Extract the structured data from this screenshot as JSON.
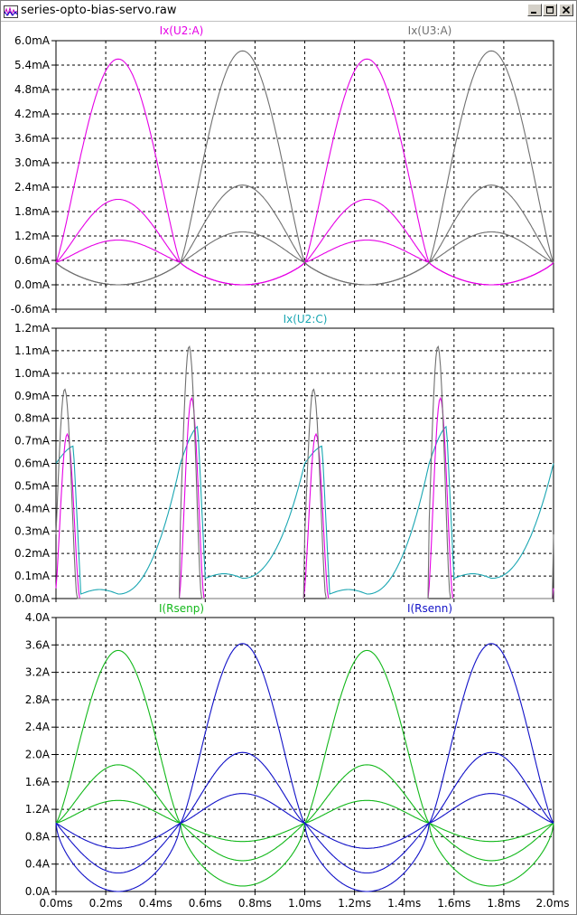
{
  "window": {
    "title": "series-opto-bias-servo.raw",
    "buttons": [
      "minimize",
      "maximize",
      "close"
    ]
  },
  "icons": {
    "app": "waveform-icon",
    "minimize": "minimize-icon",
    "maximize": "maximize-icon",
    "close": "close-icon"
  },
  "colors": {
    "background": "#ffffff",
    "grid": "#000000",
    "magenta": "#e600e6",
    "gray": "#707070",
    "cyan": "#1aa6b2",
    "green": "#12b81a",
    "blue": "#1212c8"
  },
  "x_axis": {
    "unit": "ms",
    "range": [
      0,
      2.0
    ],
    "ticks": [
      "0.0ms",
      "0.2ms",
      "0.4ms",
      "0.6ms",
      "0.8ms",
      "1.0ms",
      "1.2ms",
      "1.4ms",
      "1.6ms",
      "1.8ms",
      "2.0ms"
    ]
  },
  "chart_data": [
    {
      "type": "line",
      "grid": true,
      "legend": [
        {
          "label": "Ix(U2:A)",
          "color": "#e600e6",
          "position": "left"
        },
        {
          "label": "Ix(U3:A)",
          "color": "#707070",
          "position": "right"
        }
      ],
      "ylim": [
        -0.6,
        6.0
      ],
      "yticks": [
        "6.0mA",
        "5.4mA",
        "4.8mA",
        "4.2mA",
        "3.6mA",
        "3.0mA",
        "2.4mA",
        "1.8mA",
        "1.2mA",
        "0.6mA",
        "0.0mA",
        "-0.6mA"
      ],
      "series": [
        {
          "name": "Ix(U2:A)",
          "color": "#e600e6",
          "model": "lobe",
          "phase": 0,
          "peaks": [
            5.55,
            2.1,
            1.1
          ],
          "base": 0.55
        },
        {
          "name": "Ix(U3:A)",
          "color": "#707070",
          "model": "lobe",
          "phase": 0.5,
          "peaks": [
            5.75,
            2.45,
            1.3
          ],
          "base": 0.55
        }
      ]
    },
    {
      "type": "line",
      "grid": true,
      "legend": [
        {
          "label": "Ix(U2:C)",
          "color": "#1aa6b2",
          "position": "center"
        }
      ],
      "ylim": [
        0,
        1.2
      ],
      "yticks": [
        "1.2mA",
        "1.1mA",
        "1.0mA",
        "0.9mA",
        "0.8mA",
        "0.7mA",
        "0.6mA",
        "0.5mA",
        "0.4mA",
        "0.3mA",
        "0.2mA",
        "0.1mA",
        "0.0mA"
      ],
      "series": [
        {
          "name": "Ix(U2:C)",
          "color": "#1aa6b2",
          "model": "pulse",
          "peaks": [
            0.68,
            0.77
          ],
          "floor": [
            0.02,
            0.09
          ]
        },
        {
          "name": "",
          "color": "#e600e6",
          "model": "spike",
          "peaks": [
            0.73,
            0.89
          ]
        },
        {
          "name": "",
          "color": "#707070",
          "model": "spike",
          "peaks": [
            0.93,
            1.12
          ]
        }
      ]
    },
    {
      "type": "line",
      "grid": true,
      "legend": [
        {
          "label": "I(Rsenp)",
          "color": "#12b81a",
          "position": "left"
        },
        {
          "label": "I(Rsenn)",
          "color": "#1212c8",
          "position": "right"
        }
      ],
      "ylim": [
        0,
        4.0
      ],
      "yticks": [
        "4.0A",
        "3.6A",
        "3.2A",
        "2.8A",
        "2.4A",
        "2.0A",
        "1.6A",
        "1.2A",
        "0.8A",
        "0.4A",
        "0.0A"
      ],
      "series": [
        {
          "name": "I(Rsenp)",
          "color": "#12b81a",
          "model": "bidir",
          "phase": 0,
          "hi": [
            3.52,
            1.85,
            1.33
          ],
          "lo": [
            0.08,
            0.45,
            0.73
          ],
          "base": 1.0
        },
        {
          "name": "I(Rsenn)",
          "color": "#1212c8",
          "model": "bidir",
          "phase": 0.5,
          "hi": [
            3.62,
            2.03,
            1.43
          ],
          "lo": [
            0.0,
            0.27,
            0.63
          ],
          "base": 1.0
        }
      ]
    }
  ]
}
